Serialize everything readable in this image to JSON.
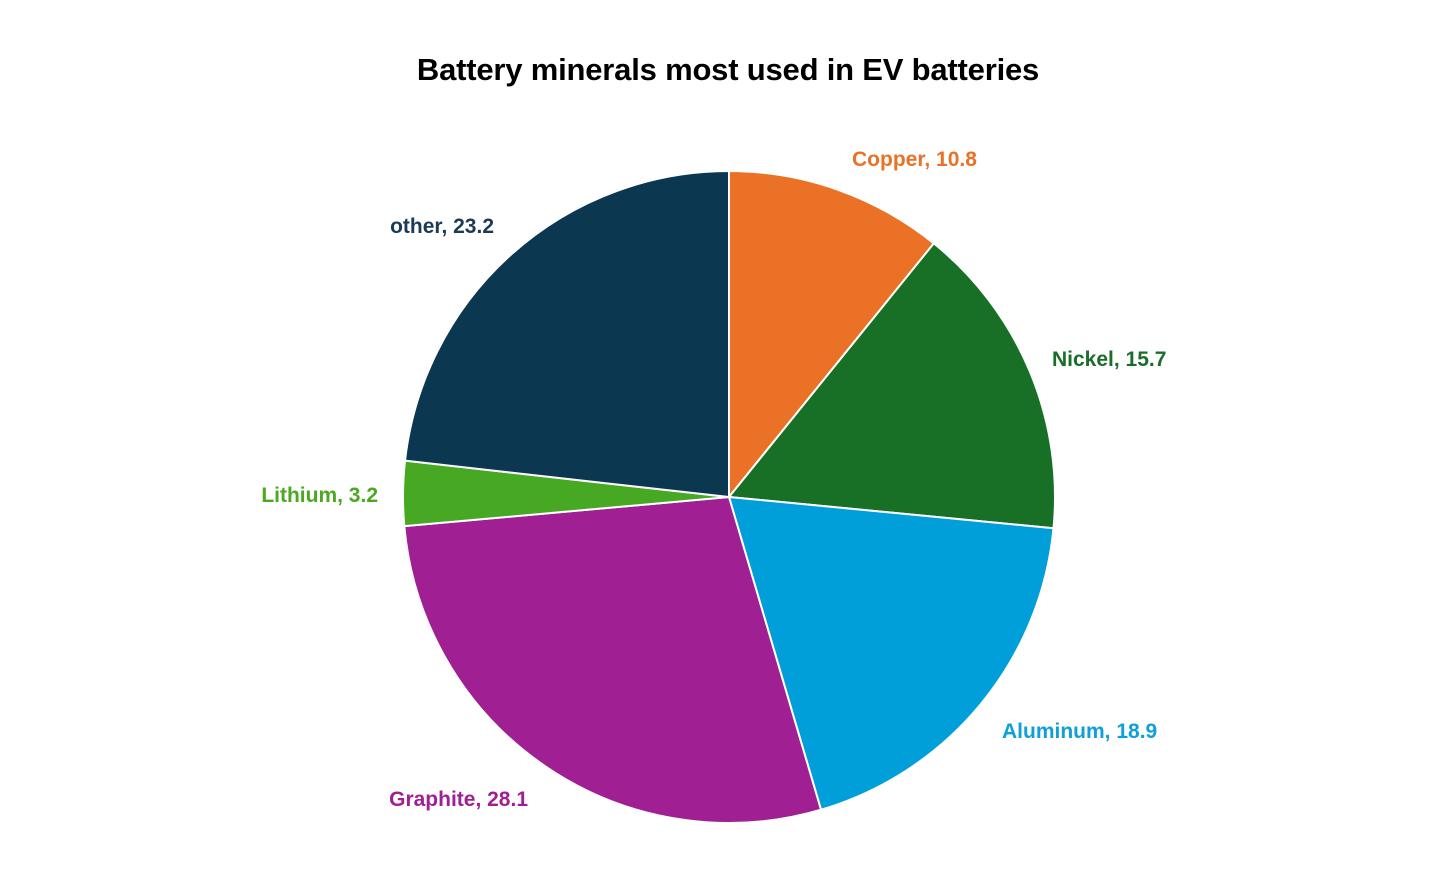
{
  "chart_data": {
    "type": "pie",
    "title": "Battery minerals most used in EV batteries",
    "start_angle_deg": 0,
    "direction": "clockwise",
    "slices": [
      {
        "label": "Copper",
        "value": 10.8,
        "display": "Copper, 10.8",
        "color": "#EA7125"
      },
      {
        "label": "Nickel",
        "value": 15.7,
        "display": "Nickel, 15.7",
        "color": "#186F26"
      },
      {
        "label": "Aluminum",
        "value": 18.9,
        "display": "Aluminum, 18.9",
        "color": "#009FDA"
      },
      {
        "label": "Graphite",
        "value": 28.1,
        "display": "Graphite, 28.1",
        "color": "#A02093"
      },
      {
        "label": "Lithium",
        "value": 3.2,
        "display": "Lithium, 3.2",
        "color": "#47A823"
      },
      {
        "label": "other",
        "value": 23.2,
        "display": "other, 23.2",
        "color": "#0C3751"
      }
    ],
    "label_colors": {
      "Copper": "#EA7125",
      "Nickel": "#1B6E2A",
      "Aluminum": "#0E9FDC",
      "Graphite": "#A02093",
      "Lithium": "#4AA821",
      "other": "#1A3A56"
    }
  }
}
